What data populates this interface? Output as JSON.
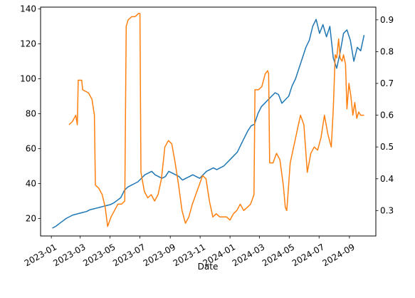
{
  "chart_data": {
    "type": "line",
    "title": "",
    "xlabel": "Date",
    "ylabel": "",
    "ylabel_right": "",
    "grid": false,
    "legend": "none",
    "xlim": [
      "2022-12-10",
      "2024-10-25"
    ],
    "ylim_left": [
      10,
      141
    ],
    "ylim_right": [
      0.22,
      0.94
    ],
    "x_ticks": [
      "2023-01",
      "2023-03",
      "2023-05",
      "2023-07",
      "2023-09",
      "2023-11",
      "2024-01",
      "2024-03",
      "2024-05",
      "2024-07",
      "2024-09"
    ],
    "y_ticks_left": [
      20,
      40,
      60,
      80,
      100,
      120,
      140
    ],
    "y_ticks_right": [
      0.3,
      0.4,
      0.5,
      0.6,
      0.7,
      0.8,
      0.9
    ],
    "series": [
      {
        "axis": "left",
        "color": "#1f77b4",
        "points": [
          [
            "2023-01-03",
            14.5
          ],
          [
            "2023-01-10",
            15.5
          ],
          [
            "2023-01-17",
            17
          ],
          [
            "2023-01-24",
            18.5
          ],
          [
            "2023-01-31",
            20
          ],
          [
            "2023-02-07",
            21
          ],
          [
            "2023-02-14",
            22
          ],
          [
            "2023-02-21",
            22.5
          ],
          [
            "2023-02-28",
            23
          ],
          [
            "2023-03-07",
            23.5
          ],
          [
            "2023-03-14",
            24
          ],
          [
            "2023-03-21",
            25
          ],
          [
            "2023-03-28",
            25.5
          ],
          [
            "2023-04-04",
            26
          ],
          [
            "2023-04-11",
            26.5
          ],
          [
            "2023-04-18",
            27
          ],
          [
            "2023-04-25",
            27.5
          ],
          [
            "2023-05-02",
            28
          ],
          [
            "2023-05-09",
            29
          ],
          [
            "2023-05-16",
            30.5
          ],
          [
            "2023-05-23",
            32
          ],
          [
            "2023-05-30",
            36
          ],
          [
            "2023-06-06",
            38
          ],
          [
            "2023-06-13",
            39
          ],
          [
            "2023-06-20",
            40
          ],
          [
            "2023-06-27",
            41
          ],
          [
            "2023-07-04",
            43
          ],
          [
            "2023-07-11",
            45
          ],
          [
            "2023-07-18",
            46
          ],
          [
            "2023-07-25",
            47
          ],
          [
            "2023-08-01",
            45
          ],
          [
            "2023-08-08",
            44
          ],
          [
            "2023-08-15",
            43
          ],
          [
            "2023-08-22",
            44
          ],
          [
            "2023-08-29",
            47
          ],
          [
            "2023-09-05",
            46
          ],
          [
            "2023-09-12",
            45
          ],
          [
            "2023-09-19",
            44
          ],
          [
            "2023-09-26",
            42
          ],
          [
            "2023-10-03",
            43
          ],
          [
            "2023-10-10",
            44
          ],
          [
            "2023-10-17",
            45
          ],
          [
            "2023-10-24",
            44
          ],
          [
            "2023-10-31",
            43
          ],
          [
            "2023-11-07",
            45
          ],
          [
            "2023-11-14",
            47
          ],
          [
            "2023-11-21",
            48
          ],
          [
            "2023-11-28",
            49
          ],
          [
            "2023-12-05",
            48
          ],
          [
            "2023-12-12",
            49
          ],
          [
            "2023-12-19",
            50
          ],
          [
            "2023-12-26",
            52
          ],
          [
            "2024-01-02",
            54
          ],
          [
            "2024-01-09",
            56
          ],
          [
            "2024-01-16",
            58
          ],
          [
            "2024-01-23",
            62
          ],
          [
            "2024-01-30",
            66
          ],
          [
            "2024-02-06",
            70
          ],
          [
            "2024-02-13",
            73
          ],
          [
            "2024-02-20",
            74
          ],
          [
            "2024-02-27",
            80
          ],
          [
            "2024-03-05",
            84
          ],
          [
            "2024-03-12",
            86
          ],
          [
            "2024-03-19",
            88
          ],
          [
            "2024-03-26",
            90
          ],
          [
            "2024-04-02",
            92
          ],
          [
            "2024-04-09",
            91
          ],
          [
            "2024-04-16",
            86
          ],
          [
            "2024-04-23",
            88
          ],
          [
            "2024-04-30",
            90
          ],
          [
            "2024-05-07",
            96
          ],
          [
            "2024-05-14",
            100
          ],
          [
            "2024-05-21",
            106
          ],
          [
            "2024-05-28",
            112
          ],
          [
            "2024-06-04",
            118
          ],
          [
            "2024-06-11",
            122
          ],
          [
            "2024-06-18",
            130
          ],
          [
            "2024-06-25",
            134
          ],
          [
            "2024-07-02",
            126
          ],
          [
            "2024-07-09",
            131
          ],
          [
            "2024-07-16",
            124
          ],
          [
            "2024-07-23",
            130
          ],
          [
            "2024-07-30",
            112
          ],
          [
            "2024-08-06",
            106
          ],
          [
            "2024-08-13",
            115
          ],
          [
            "2024-08-20",
            126
          ],
          [
            "2024-08-27",
            128
          ],
          [
            "2024-09-03",
            122
          ],
          [
            "2024-09-10",
            110
          ],
          [
            "2024-09-17",
            118
          ],
          [
            "2024-09-24",
            116
          ],
          [
            "2024-10-01",
            125
          ]
        ]
      },
      {
        "axis": "right",
        "color": "#ff7f0e",
        "points": [
          [
            "2023-02-06",
            0.57
          ],
          [
            "2023-02-13",
            0.58
          ],
          [
            "2023-02-20",
            0.6
          ],
          [
            "2023-02-23",
            0.57
          ],
          [
            "2023-02-25",
            0.71
          ],
          [
            "2023-03-04",
            0.71
          ],
          [
            "2023-03-06",
            0.68
          ],
          [
            "2023-03-18",
            0.67
          ],
          [
            "2023-03-25",
            0.65
          ],
          [
            "2023-03-30",
            0.6
          ],
          [
            "2023-04-01",
            0.38
          ],
          [
            "2023-04-08",
            0.37
          ],
          [
            "2023-04-15",
            0.35
          ],
          [
            "2023-04-21",
            0.31
          ],
          [
            "2023-04-26",
            0.25
          ],
          [
            "2023-05-03",
            0.28
          ],
          [
            "2023-05-10",
            0.3
          ],
          [
            "2023-05-17",
            0.32
          ],
          [
            "2023-05-24",
            0.32
          ],
          [
            "2023-05-31",
            0.33
          ],
          [
            "2023-06-03",
            0.88
          ],
          [
            "2023-06-07",
            0.9
          ],
          [
            "2023-06-14",
            0.91
          ],
          [
            "2023-06-21",
            0.91
          ],
          [
            "2023-06-28",
            0.92
          ],
          [
            "2023-07-01",
            0.92
          ],
          [
            "2023-07-03",
            0.42
          ],
          [
            "2023-07-10",
            0.36
          ],
          [
            "2023-07-17",
            0.34
          ],
          [
            "2023-07-24",
            0.35
          ],
          [
            "2023-07-31",
            0.33
          ],
          [
            "2023-08-07",
            0.35
          ],
          [
            "2023-08-14",
            0.4
          ],
          [
            "2023-08-21",
            0.5
          ],
          [
            "2023-08-28",
            0.52
          ],
          [
            "2023-09-04",
            0.51
          ],
          [
            "2023-09-11",
            0.45
          ],
          [
            "2023-09-18",
            0.38
          ],
          [
            "2023-09-25",
            0.3
          ],
          [
            "2023-10-02",
            0.26
          ],
          [
            "2023-10-09",
            0.28
          ],
          [
            "2023-10-16",
            0.32
          ],
          [
            "2023-10-23",
            0.35
          ],
          [
            "2023-10-30",
            0.38
          ],
          [
            "2023-11-06",
            0.41
          ],
          [
            "2023-11-13",
            0.4
          ],
          [
            "2023-11-20",
            0.33
          ],
          [
            "2023-11-27",
            0.28
          ],
          [
            "2023-12-04",
            0.29
          ],
          [
            "2023-12-11",
            0.28
          ],
          [
            "2023-12-18",
            0.28
          ],
          [
            "2023-12-25",
            0.28
          ],
          [
            "2024-01-01",
            0.27
          ],
          [
            "2024-01-08",
            0.29
          ],
          [
            "2024-01-15",
            0.3
          ],
          [
            "2024-01-22",
            0.32
          ],
          [
            "2024-01-29",
            0.3
          ],
          [
            "2024-02-05",
            0.31
          ],
          [
            "2024-02-12",
            0.32
          ],
          [
            "2024-02-19",
            0.35
          ],
          [
            "2024-02-21",
            0.68
          ],
          [
            "2024-02-28",
            0.68
          ],
          [
            "2024-03-06",
            0.69
          ],
          [
            "2024-03-13",
            0.73
          ],
          [
            "2024-03-18",
            0.74
          ],
          [
            "2024-03-20",
            0.73
          ],
          [
            "2024-03-22",
            0.45
          ],
          [
            "2024-03-29",
            0.45
          ],
          [
            "2024-04-05",
            0.48
          ],
          [
            "2024-04-12",
            0.46
          ],
          [
            "2024-04-19",
            0.38
          ],
          [
            "2024-04-23",
            0.31
          ],
          [
            "2024-04-26",
            0.3
          ],
          [
            "2024-05-03",
            0.45
          ],
          [
            "2024-05-10",
            0.5
          ],
          [
            "2024-05-17",
            0.55
          ],
          [
            "2024-05-24",
            0.6
          ],
          [
            "2024-05-31",
            0.57
          ],
          [
            "2024-06-07",
            0.42
          ],
          [
            "2024-06-14",
            0.48
          ],
          [
            "2024-06-21",
            0.5
          ],
          [
            "2024-06-28",
            0.49
          ],
          [
            "2024-07-05",
            0.53
          ],
          [
            "2024-07-12",
            0.6
          ],
          [
            "2024-07-19",
            0.54
          ],
          [
            "2024-07-26",
            0.5
          ],
          [
            "2024-07-30",
            0.62
          ],
          [
            "2024-08-03",
            0.79
          ],
          [
            "2024-08-06",
            0.78
          ],
          [
            "2024-08-10",
            0.84
          ],
          [
            "2024-08-13",
            0.78
          ],
          [
            "2024-08-17",
            0.77
          ],
          [
            "2024-08-20",
            0.79
          ],
          [
            "2024-08-24",
            0.76
          ],
          [
            "2024-08-27",
            0.62
          ],
          [
            "2024-08-31",
            0.7
          ],
          [
            "2024-09-04",
            0.66
          ],
          [
            "2024-09-08",
            0.6
          ],
          [
            "2024-09-12",
            0.64
          ],
          [
            "2024-09-16",
            0.59
          ],
          [
            "2024-09-20",
            0.61
          ],
          [
            "2024-09-24",
            0.6
          ],
          [
            "2024-10-01",
            0.6
          ]
        ]
      }
    ]
  }
}
